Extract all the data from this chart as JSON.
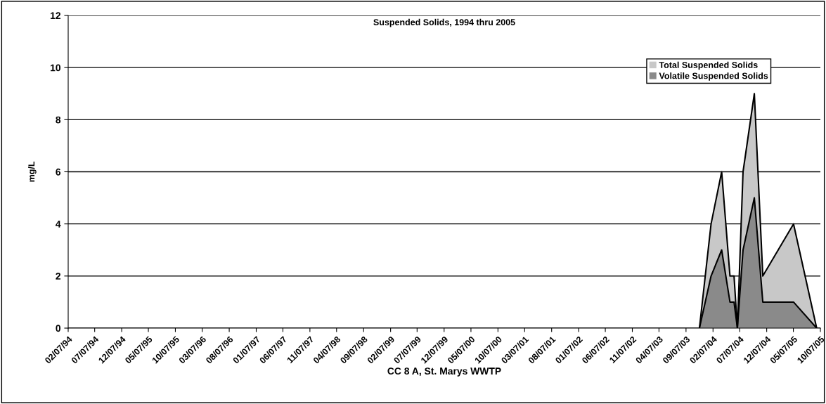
{
  "chart_data": {
    "type": "area",
    "title": "Suspended Solids, 1994 thru 2005",
    "xlabel": "CC 8 A, St. Marys WWTP",
    "ylabel": "mg/L",
    "x": [
      "2003-11-22",
      "2004-01-27",
      "2004-03-27",
      "2004-05-13",
      "2004-06-05",
      "2004-06-24",
      "2004-07-26",
      "2004-09-28",
      "2004-11-15",
      "2005-05-08",
      "2005-09-16"
    ],
    "series": [
      {
        "name": "Total Suspended Solids",
        "color": "#c8c8c8",
        "values": [
          0,
          4,
          6,
          2,
          2,
          0,
          6,
          9,
          2,
          4,
          0
        ]
      },
      {
        "name": "Volatile Suspended Solids",
        "color": "#8a8a8a",
        "values": [
          0,
          2,
          3,
          1,
          1,
          0,
          3,
          5,
          1,
          1,
          0
        ]
      }
    ],
    "xlim": [
      "1994-02-07",
      "2005-10-07"
    ],
    "xticks": [
      {
        "value": "1994-02-07",
        "label": "02/07/94"
      },
      {
        "value": "1994-07-07",
        "label": "07/07/94"
      },
      {
        "value": "1994-12-07",
        "label": "12/07/94"
      },
      {
        "value": "1995-05-07",
        "label": "05/07/95"
      },
      {
        "value": "1995-10-07",
        "label": "10/07/95"
      },
      {
        "value": "1996-03-07",
        "label": "03/07/96"
      },
      {
        "value": "1996-08-07",
        "label": "08/07/96"
      },
      {
        "value": "1997-01-07",
        "label": "01/07/97"
      },
      {
        "value": "1997-06-07",
        "label": "06/07/97"
      },
      {
        "value": "1997-11-07",
        "label": "11/07/97"
      },
      {
        "value": "1998-04-07",
        "label": "04/07/98"
      },
      {
        "value": "1998-09-07",
        "label": "09/07/98"
      },
      {
        "value": "1999-02-07",
        "label": "02/07/99"
      },
      {
        "value": "1999-07-07",
        "label": "07/07/99"
      },
      {
        "value": "1999-12-07",
        "label": "12/07/99"
      },
      {
        "value": "2000-05-07",
        "label": "05/07/00"
      },
      {
        "value": "2000-10-07",
        "label": "10/07/00"
      },
      {
        "value": "2001-03-07",
        "label": "03/07/01"
      },
      {
        "value": "2001-08-07",
        "label": "08/07/01"
      },
      {
        "value": "2002-01-07",
        "label": "01/07/02"
      },
      {
        "value": "2002-06-07",
        "label": "06/07/02"
      },
      {
        "value": "2002-11-07",
        "label": "11/07/02"
      },
      {
        "value": "2003-04-07",
        "label": "04/07/03"
      },
      {
        "value": "2003-09-07",
        "label": "09/07/03"
      },
      {
        "value": "2004-02-07",
        "label": "02/07/04"
      },
      {
        "value": "2004-07-07",
        "label": "07/07/04"
      },
      {
        "value": "2004-12-07",
        "label": "12/07/04"
      },
      {
        "value": "2005-05-07",
        "label": "05/07/05"
      },
      {
        "value": "2005-10-07",
        "label": "10/07/05"
      }
    ],
    "ylim": [
      0,
      12
    ],
    "yticks": [
      0,
      2,
      4,
      6,
      8,
      10,
      12
    ],
    "grid": "y",
    "legend": "top right"
  }
}
